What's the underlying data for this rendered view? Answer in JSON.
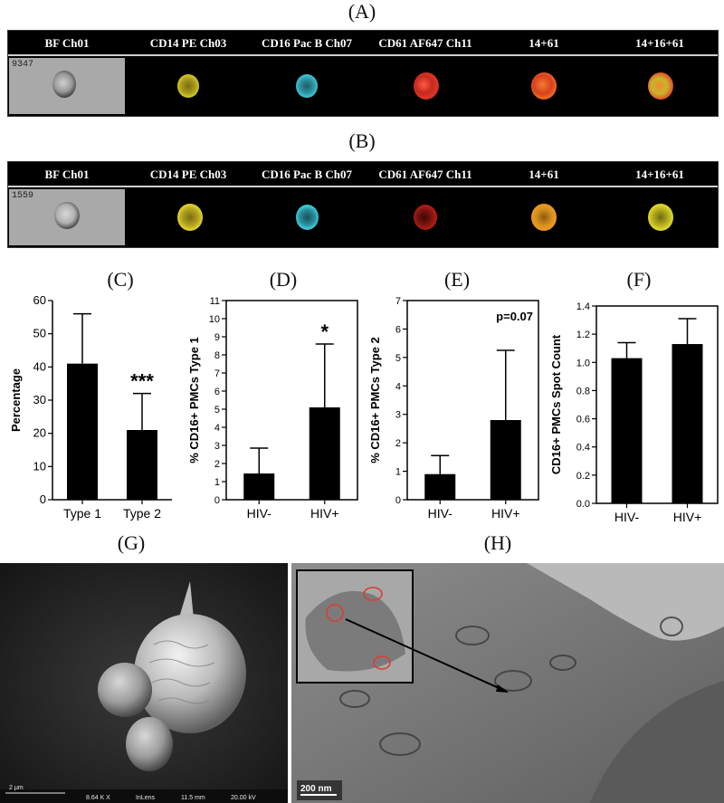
{
  "panels": {
    "a": "(A)",
    "b": "(B)",
    "c": "(C)",
    "d": "(D)",
    "e": "(E)",
    "f": "(F)",
    "g": "(G)",
    "h": "(H)"
  },
  "channel_headers": [
    "BF Ch01",
    "CD14 PE Ch03",
    "CD16 Pac B Ch07",
    "CD61 AF647 Ch11",
    "14+61",
    "14+16+61"
  ],
  "strip_a": {
    "object_id": "9347"
  },
  "strip_b": {
    "object_id": "1559"
  },
  "sem": {
    "scale_label": "2 μm",
    "mag": "8.64 K X",
    "detector": "InLens",
    "wd": "11.5 mm",
    "kv": "20.00 kV"
  },
  "tem": {
    "scale_label": "200 nm"
  },
  "colors": {
    "bar": "#000000",
    "cd14": "#d6c92a",
    "cd16": "#3fc6d6",
    "cd61": "#e0352a",
    "merge14_61": "#ef6a24",
    "merge_all": "#c9b232"
  },
  "chart_data": [
    {
      "type": "bar",
      "title": "",
      "ylabel": "Percentage",
      "xlabel": "",
      "categories": [
        "Type 1",
        "Type 2"
      ],
      "values": [
        41,
        21
      ],
      "errors": [
        15,
        11
      ],
      "ylim": [
        0,
        60
      ],
      "yticks": [
        "0",
        "10",
        "20",
        "30",
        "40",
        "50",
        "60"
      ],
      "annotation": "***",
      "annotation_on": 1
    },
    {
      "type": "bar",
      "title": "",
      "ylabel": "% CD16+ PMCs Type 1",
      "xlabel": "",
      "categories": [
        "HIV-",
        "HIV+"
      ],
      "values": [
        1.45,
        5.1
      ],
      "errors": [
        1.4,
        3.5
      ],
      "ylim": [
        0,
        11
      ],
      "yticks": [
        "0",
        "1",
        "2",
        "3",
        "4",
        "5",
        "6",
        "7",
        "8",
        "9",
        "10",
        "11"
      ],
      "annotation": "*",
      "annotation_on": 1
    },
    {
      "type": "bar",
      "title": "",
      "ylabel": "% CD16+ PMCs Type 2",
      "xlabel": "",
      "categories": [
        "HIV-",
        "HIV+"
      ],
      "values": [
        0.9,
        2.8
      ],
      "errors": [
        0.65,
        2.45
      ],
      "ylim": [
        0,
        7
      ],
      "yticks": [
        "0",
        "1",
        "2",
        "3",
        "4",
        "5",
        "6",
        "7"
      ],
      "annotation": "p=0.07",
      "annotation_on": -1
    },
    {
      "type": "bar",
      "title": "",
      "ylabel": "CD16+ PMCs Spot Count",
      "xlabel": "",
      "categories": [
        "HIV-",
        "HIV+"
      ],
      "values": [
        1.03,
        1.13
      ],
      "errors": [
        0.11,
        0.18
      ],
      "ylim": [
        0,
        1.4
      ],
      "yticks": [
        "0.0",
        "0.2",
        "0.4",
        "0.6",
        "0.8",
        "1.0",
        "1.2",
        "1.4"
      ],
      "annotation": "",
      "annotation_on": -1
    }
  ]
}
